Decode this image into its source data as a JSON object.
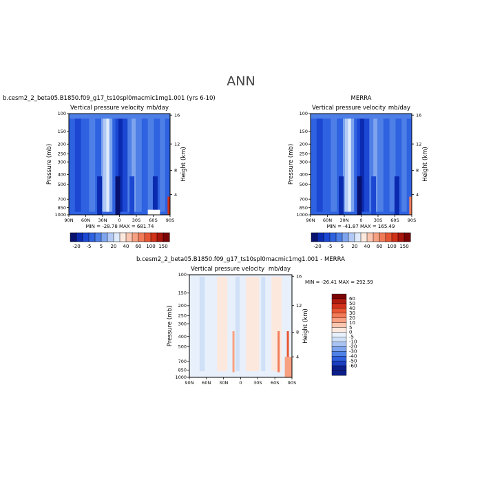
{
  "page_title": "ANN",
  "colorbar_top": {
    "labels": [
      "-20",
      "-5",
      "5",
      "20",
      "40",
      "60",
      "100",
      "150"
    ],
    "colors": [
      "#08126e",
      "#0a2ab0",
      "#1b47d2",
      "#2f62e0",
      "#4d7fe6",
      "#7ea4ee",
      "#b2c9f5",
      "#deeafb",
      "#fde8de",
      "#fbc5b0",
      "#f6a082",
      "#f07a58",
      "#e55533",
      "#cf3119",
      "#a8150c",
      "#7a0404"
    ]
  },
  "colorbar_diff": {
    "labels": [
      "60",
      "50",
      "40",
      "30",
      "20",
      "10",
      "5",
      "0",
      "-5",
      "-10",
      "-20",
      "-30",
      "-40",
      "-50",
      "-60"
    ],
    "colors": [
      "#7a0404",
      "#b01a0e",
      "#d2301a",
      "#e85532",
      "#f27b58",
      "#f8a182",
      "#fbc6b0",
      "#fde8de",
      "#e8f0fb",
      "#cfe0f7",
      "#a9c3f2",
      "#7ea4ee",
      "#4f80e6",
      "#2e5fdc",
      "#1b3fc0",
      "#0b1e8a"
    ]
  },
  "chart_data": [
    {
      "type": "heatmap",
      "title": "b.cesm2_2_beta05.B1850.f09_g17_ts10spl0macmic1mg1.001 (yrs 6-10)",
      "subtitle_left": "Vertical pressure velocity",
      "subtitle_right": "mb/day",
      "ylabel": "Pressure (mb)",
      "ylabel_right": "Height (km)",
      "x_ticks": [
        "90N",
        "60N",
        "30N",
        "0",
        "30S",
        "60S",
        "90S"
      ],
      "y_ticks": [
        "100",
        "150",
        "200",
        "250",
        "300",
        "400",
        "500",
        "700",
        "850",
        "1000"
      ],
      "y_ticks_right": [
        "16",
        "12",
        "8",
        "4"
      ],
      "stats": "MIN = -28.78   MAX = 681.74",
      "ylim": [
        1000,
        100
      ]
    },
    {
      "type": "heatmap",
      "title": "MERRA",
      "subtitle_left": "Vertical pressure velocity",
      "subtitle_right": "mb/day",
      "ylabel": "Pressure (mb)",
      "ylabel_right": "Height (km)",
      "x_ticks": [
        "90N",
        "60N",
        "30N",
        "0",
        "30S",
        "60S",
        "90S"
      ],
      "y_ticks": [
        "100",
        "150",
        "200",
        "250",
        "300",
        "400",
        "500",
        "700",
        "850",
        "1000"
      ],
      "y_ticks_right": [
        "16",
        "12",
        "8",
        "4"
      ],
      "stats": "MIN = -41.87   MAX = 165.49",
      "ylim": [
        1000,
        100
      ]
    },
    {
      "type": "heatmap",
      "title": "b.cesm2_2_beta05.B1850.f09_g17_ts10spl0macmic1mg1.001 - MERRA",
      "subtitle_left": "Vertical pressure velocity",
      "subtitle_right": "mb/day",
      "ylabel": "Pressure (mb)",
      "ylabel_right": "Height (km)",
      "x_ticks": [
        "90N",
        "60N",
        "30N",
        "0",
        "30S",
        "60S",
        "90S"
      ],
      "y_ticks": [
        "100",
        "150",
        "200",
        "250",
        "300",
        "400",
        "500",
        "700",
        "850",
        "1000"
      ],
      "y_ticks_right": [
        "16",
        "12",
        "8",
        "4"
      ],
      "stats": "MIN = -26.41   MAX = 292.59",
      "ylim": [
        1000,
        100
      ]
    }
  ]
}
